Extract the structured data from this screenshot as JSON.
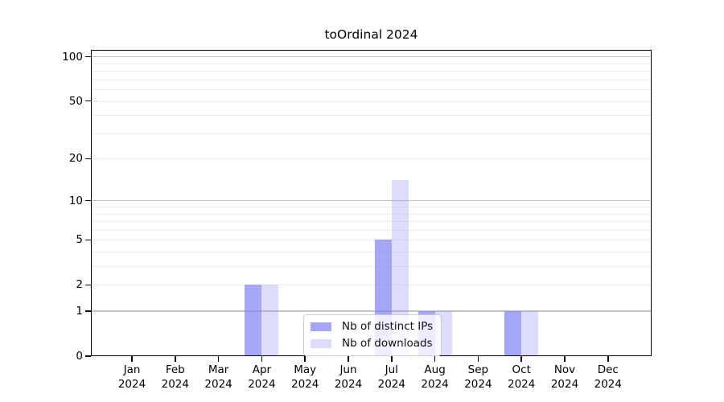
{
  "chart_data": {
    "type": "bar",
    "title": "toOrdinal 2024",
    "categories": [
      "Jan",
      "Feb",
      "Mar",
      "Apr",
      "May",
      "Jun",
      "Jul",
      "Aug",
      "Sep",
      "Oct",
      "Nov",
      "Dec"
    ],
    "year_label": "2024",
    "series": [
      {
        "name": "Nb of distinct IPs",
        "color": "rgba(128,128,244,0.70)",
        "values": [
          0,
          0,
          0,
          2,
          0,
          0,
          5,
          1,
          0,
          1,
          0,
          0
        ]
      },
      {
        "name": "Nb of downloads",
        "color": "rgba(128,128,244,0.28)",
        "values": [
          0,
          0,
          0,
          2,
          0,
          0,
          14,
          1,
          0,
          1,
          0,
          0
        ]
      }
    ],
    "xlabel": "",
    "ylabel": "",
    "y_ticks": [
      0,
      1,
      2,
      5,
      10,
      20,
      50,
      100
    ],
    "y_scale": "log10(value+1)",
    "ylim": [
      0,
      111
    ],
    "grid": {
      "minor_values": [
        2,
        3,
        4,
        5,
        6,
        7,
        8,
        9,
        20,
        30,
        40,
        50,
        60,
        70,
        80,
        90
      ],
      "major_values": [
        1,
        10,
        100
      ],
      "minor_color": "#ececec",
      "major_color": "#c3c3c3"
    },
    "legend_position": "lower center",
    "colors": {
      "bar_base": "#8080f4",
      "axis": "#000000",
      "background": "#ffffff"
    }
  }
}
